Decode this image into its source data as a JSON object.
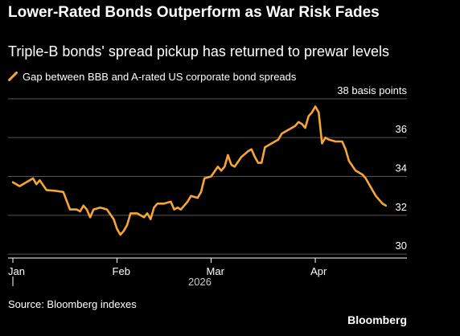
{
  "header": {
    "title": "Lower-Rated Bonds Outperform as War Risk Fades",
    "subtitle": "Triple-B bonds' spread pickup has returned to prewar levels"
  },
  "footer": {
    "source": "Source: Bloomberg indexes",
    "brand": "Bloomberg"
  },
  "colors": {
    "background": "#000000",
    "line": "#f5a637",
    "grid": "#555555",
    "text": "#ffffff"
  },
  "chart_data": {
    "type": "line",
    "legend": "top-left",
    "grid": true,
    "x_start": "2026-01-01",
    "x_end": "2026-04-23",
    "ylim": [
      29.8,
      38.2
    ],
    "y_ticks": [
      {
        "value": 38,
        "label": "38 basis points"
      },
      {
        "value": 36,
        "label": "36"
      },
      {
        "value": 34,
        "label": "34"
      },
      {
        "value": 32,
        "label": "32"
      },
      {
        "value": 30,
        "label": "30"
      }
    ],
    "x_ticks": [
      {
        "date": "2026-01-01",
        "label": "Jan"
      },
      {
        "date": "2026-02-01",
        "label": "Feb"
      },
      {
        "date": "2026-03-01",
        "label": "Mar"
      },
      {
        "date": "2026-04-01",
        "label": "Apr"
      }
    ],
    "year_label": "2026",
    "series": [
      {
        "name": "Gap between BBB and A-rated US corporate bond spreads",
        "color": "#f5a637",
        "points": [
          [
            "2026-01-01",
            33.7
          ],
          [
            "2026-01-03",
            33.5
          ],
          [
            "2026-01-05",
            33.7
          ],
          [
            "2026-01-07",
            33.9
          ],
          [
            "2026-01-08",
            33.6
          ],
          [
            "2026-01-09",
            33.8
          ],
          [
            "2026-01-11",
            33.3
          ],
          [
            "2026-01-14",
            33.25
          ],
          [
            "2026-01-16",
            33.2
          ],
          [
            "2026-01-18",
            32.3
          ],
          [
            "2026-01-20",
            32.3
          ],
          [
            "2026-01-21",
            32.2
          ],
          [
            "2026-01-22",
            32.5
          ],
          [
            "2026-01-23",
            32.3
          ],
          [
            "2026-01-24",
            31.9
          ],
          [
            "2026-01-25",
            32.3
          ],
          [
            "2026-01-27",
            32.4
          ],
          [
            "2026-01-29",
            32.3
          ],
          [
            "2026-01-31",
            31.8
          ],
          [
            "2026-02-01",
            31.3
          ],
          [
            "2026-02-02",
            31.0
          ],
          [
            "2026-02-03",
            31.2
          ],
          [
            "2026-02-04",
            31.5
          ],
          [
            "2026-02-05",
            32.1
          ],
          [
            "2026-02-07",
            32.1
          ],
          [
            "2026-02-09",
            31.9
          ],
          [
            "2026-02-10",
            32.1
          ],
          [
            "2026-02-11",
            31.8
          ],
          [
            "2026-02-12",
            32.4
          ],
          [
            "2026-02-13",
            32.6
          ],
          [
            "2026-02-15",
            32.6
          ],
          [
            "2026-02-17",
            32.7
          ],
          [
            "2026-02-18",
            32.3
          ],
          [
            "2026-02-19",
            32.4
          ],
          [
            "2026-02-20",
            32.3
          ],
          [
            "2026-02-22",
            32.7
          ],
          [
            "2026-02-23",
            33.0
          ],
          [
            "2026-02-25",
            32.9
          ],
          [
            "2026-02-26",
            33.2
          ],
          [
            "2026-02-27",
            33.9
          ],
          [
            "2026-03-01",
            34.0
          ],
          [
            "2026-03-03",
            34.5
          ],
          [
            "2026-03-04",
            34.3
          ],
          [
            "2026-03-05",
            34.5
          ],
          [
            "2026-03-06",
            35.1
          ],
          [
            "2026-03-07",
            34.6
          ],
          [
            "2026-03-08",
            34.5
          ],
          [
            "2026-03-10",
            35.0
          ],
          [
            "2026-03-12",
            35.3
          ],
          [
            "2026-03-13",
            35.4
          ],
          [
            "2026-03-14",
            35.0
          ],
          [
            "2026-03-15",
            34.7
          ],
          [
            "2026-03-16",
            34.7
          ],
          [
            "2026-03-17",
            35.5
          ],
          [
            "2026-03-19",
            35.7
          ],
          [
            "2026-03-21",
            35.9
          ],
          [
            "2026-03-22",
            36.2
          ],
          [
            "2026-03-24",
            36.4
          ],
          [
            "2026-03-26",
            36.6
          ],
          [
            "2026-03-27",
            36.8
          ],
          [
            "2026-03-28",
            36.7
          ],
          [
            "2026-03-29",
            36.5
          ],
          [
            "2026-03-30",
            37.1
          ],
          [
            "2026-03-31",
            37.3
          ],
          [
            "2026-04-01",
            37.6
          ],
          [
            "2026-04-02",
            37.3
          ],
          [
            "2026-04-03",
            35.7
          ],
          [
            "2026-04-04",
            36.0
          ],
          [
            "2026-04-05",
            35.9
          ],
          [
            "2026-04-07",
            35.8
          ],
          [
            "2026-04-09",
            35.8
          ],
          [
            "2026-04-10",
            35.4
          ],
          [
            "2026-04-11",
            34.8
          ],
          [
            "2026-04-13",
            34.3
          ],
          [
            "2026-04-15",
            34.1
          ],
          [
            "2026-04-16",
            33.9
          ],
          [
            "2026-04-17",
            33.6
          ],
          [
            "2026-04-19",
            33.0
          ],
          [
            "2026-04-21",
            32.6
          ],
          [
            "2026-04-22",
            32.5
          ]
        ]
      }
    ]
  }
}
